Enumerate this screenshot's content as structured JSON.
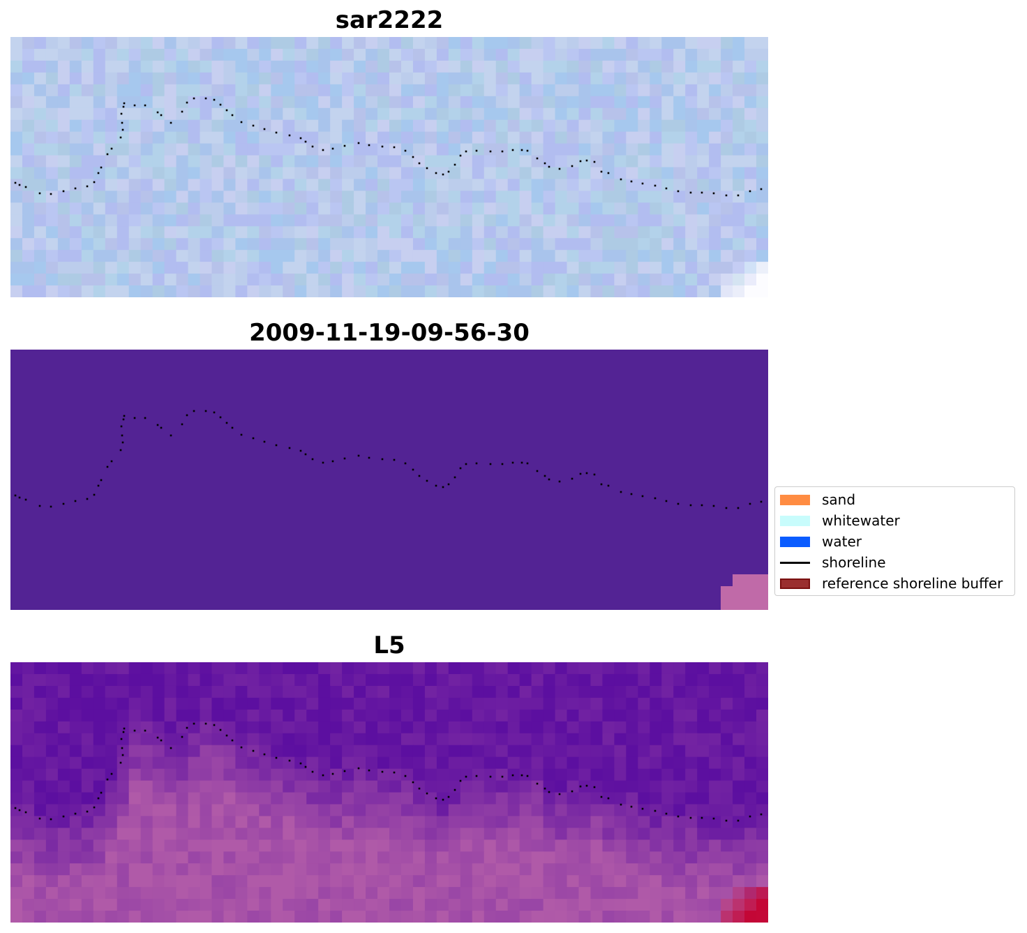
{
  "panels": [
    {
      "id": "sar",
      "title": "sar2222"
    },
    {
      "id": "classified",
      "title": "2009-11-19-09-56-30"
    },
    {
      "id": "landsat",
      "title": "L5"
    }
  ],
  "legend": {
    "items": [
      {
        "label": "sand",
        "color": "#ff8c42",
        "kind": "patch"
      },
      {
        "label": "whitewater",
        "color": "#c8fcfc",
        "kind": "patch"
      },
      {
        "label": "water",
        "color": "#0a5cff",
        "kind": "patch"
      },
      {
        "label": "shoreline",
        "color": "#000000",
        "kind": "line"
      },
      {
        "label": "reference shoreline buffer",
        "color": "#9a2f2f",
        "edge": "#7a1010",
        "kind": "patch"
      }
    ]
  },
  "colors": {
    "classified_background": "#532394",
    "classified_corner": "#c06aa8",
    "sar_base": "#b4c6ee",
    "landsat_water": "#5c0fa0",
    "landsat_land": "#b05aa8",
    "landsat_hot": "#c8002a",
    "shoreline_dot": "#000000"
  }
}
